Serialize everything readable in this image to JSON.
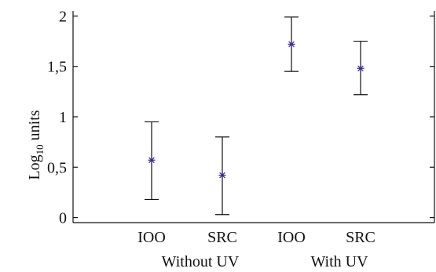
{
  "chart_data": {
    "type": "scatter",
    "title": "",
    "xlabel": "",
    "ylabel_main": "Log",
    "ylabel_sub": "10",
    "ylabel_rest": " units",
    "ylim": [
      -0.05,
      2.05
    ],
    "yticks": [
      0,
      0.5,
      1,
      1.5,
      2
    ],
    "ytick_labels": [
      "0",
      "0,5",
      "1",
      "1,5",
      "2"
    ],
    "grid": false,
    "categories": [
      "IOO",
      "SRC",
      "IOO",
      "SRC"
    ],
    "groups": [
      {
        "label": "Without UV",
        "categories": [
          0,
          1
        ]
      },
      {
        "label": "With UV",
        "categories": [
          2,
          3
        ]
      }
    ],
    "points": [
      {
        "category": "IOO",
        "group": "Without UV",
        "mean": 0.57,
        "lower": 0.18,
        "upper": 0.95
      },
      {
        "category": "SRC",
        "group": "Without UV",
        "mean": 0.42,
        "lower": 0.03,
        "upper": 0.8
      },
      {
        "category": "IOO",
        "group": "With UV",
        "mean": 1.72,
        "lower": 1.45,
        "upper": 1.99
      },
      {
        "category": "SRC",
        "group": "With UV",
        "mean": 1.48,
        "lower": 1.22,
        "upper": 1.75
      }
    ],
    "colors": {
      "marker": "#3a2f8f",
      "errorbar": "#111111",
      "axis": "#111111"
    },
    "marker_symbol": "asterisk"
  }
}
